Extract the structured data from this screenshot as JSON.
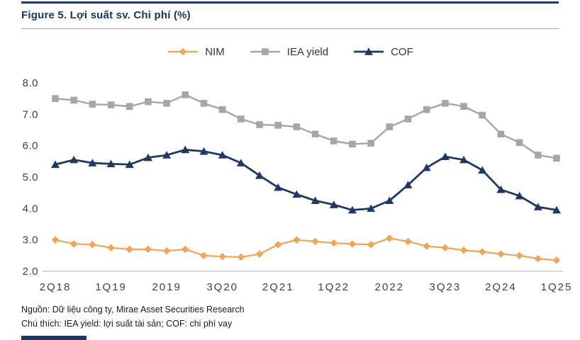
{
  "figure": {
    "title": "Figure 5. Lợi suất sv. Chi phí (%)",
    "source": "Nguồn: Dữ liệu công ty, Mirae Asset Securities Research",
    "note": "Chú thích: IEA yield: lợi suất tài sản; COF: chi phí vay"
  },
  "colors": {
    "navy": "#1F3864",
    "title": "#16365C",
    "orange": "#F1A356",
    "gray": "#A6A6A6",
    "axis": "#BFBFBF",
    "tick_text": "#404040"
  },
  "chart_data": {
    "type": "line",
    "title": "Figure 5. Lợi suất sv. Chi phí (%)",
    "xlabel": "",
    "ylabel": "",
    "ylim": [
      2.0,
      8.0
    ],
    "yticks": [
      2.0,
      3.0,
      4.0,
      5.0,
      6.0,
      7.0,
      8.0
    ],
    "grid": false,
    "legend_position": "top-center",
    "x": [
      "2Q18",
      "3Q18",
      "4Q18",
      "1Q19",
      "2Q19",
      "3Q19",
      "4Q19",
      "1Q20",
      "2Q20",
      "3Q20",
      "4Q20",
      "1Q21",
      "2Q21",
      "3Q21",
      "4Q21",
      "1Q22",
      "2Q22",
      "3Q22",
      "4Q22",
      "1Q23",
      "2Q23",
      "3Q23",
      "4Q23",
      "1Q24",
      "2Q24",
      "3Q24",
      "4Q24",
      "1Q25"
    ],
    "x_tick_positions": [
      0,
      3,
      6,
      9,
      12,
      15,
      18,
      21,
      24,
      27
    ],
    "x_tick_labels": [
      "2Q18",
      "1Q19",
      "2019",
      "3Q20",
      "2Q21",
      "1Q22",
      "2022",
      "3Q23",
      "2Q24",
      "1Q25"
    ],
    "series": [
      {
        "name": "NIM",
        "marker": "diamond",
        "color": "#F1A356",
        "width": 2.2,
        "values": [
          3.0,
          2.87,
          2.85,
          2.75,
          2.7,
          2.7,
          2.65,
          2.7,
          2.5,
          2.47,
          2.45,
          2.55,
          2.85,
          3.0,
          2.95,
          2.9,
          2.87,
          2.85,
          3.05,
          2.95,
          2.8,
          2.75,
          2.67,
          2.62,
          2.55,
          2.5,
          2.4,
          2.35
        ]
      },
      {
        "name": "IEA yield",
        "marker": "square",
        "color": "#A6A6A6",
        "width": 2.4,
        "values": [
          7.5,
          7.45,
          7.32,
          7.3,
          7.25,
          7.4,
          7.35,
          7.62,
          7.35,
          7.15,
          6.85,
          6.67,
          6.65,
          6.6,
          6.37,
          6.15,
          6.05,
          6.08,
          6.6,
          6.85,
          7.15,
          7.35,
          7.25,
          6.97,
          6.37,
          6.1,
          5.7,
          5.6
        ]
      },
      {
        "name": "COF",
        "marker": "triangle",
        "color": "#1F3864",
        "width": 2.8,
        "values": [
          5.4,
          5.55,
          5.45,
          5.42,
          5.4,
          5.62,
          5.7,
          5.87,
          5.82,
          5.7,
          5.45,
          5.05,
          4.67,
          4.45,
          4.25,
          4.12,
          3.95,
          4.0,
          4.25,
          4.75,
          5.3,
          5.65,
          5.55,
          5.22,
          4.6,
          4.4,
          4.05,
          3.95
        ]
      }
    ]
  }
}
